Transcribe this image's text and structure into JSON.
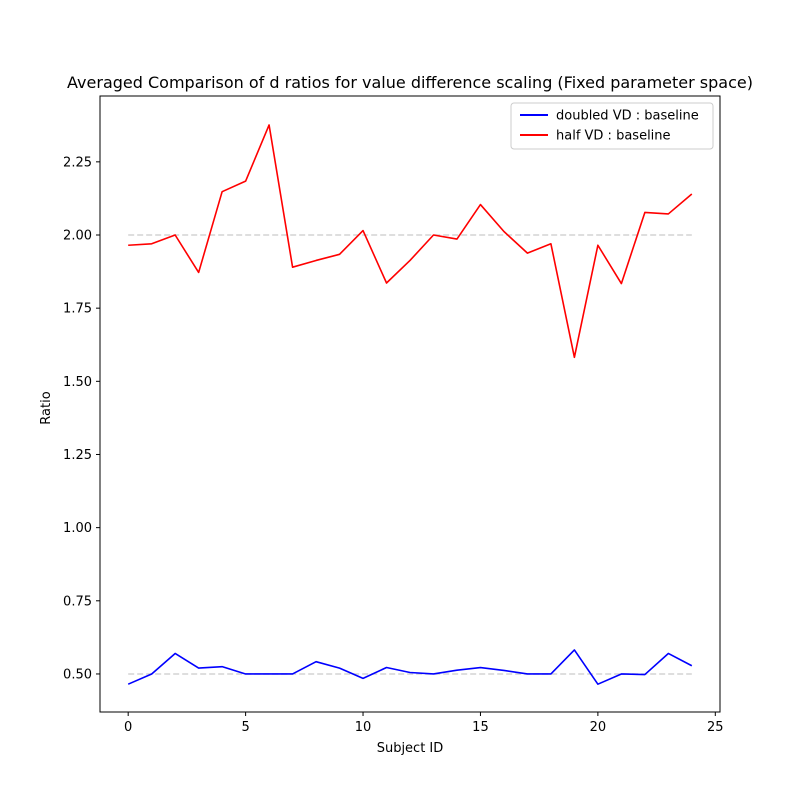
{
  "chart_data": {
    "type": "line",
    "title": "Averaged Comparison of d ratios for value difference scaling (Fixed parameter space)",
    "xlabel": "Subject ID",
    "ylabel": "Ratio",
    "xlim": [
      -1.2,
      25.2
    ],
    "ylim": [
      0.37,
      2.475
    ],
    "xticks": [
      0,
      5,
      10,
      15,
      20,
      25
    ],
    "yticks": [
      0.5,
      0.75,
      1.0,
      1.25,
      1.5,
      1.75,
      2.0,
      2.25
    ],
    "ytick_labels": [
      "0.50",
      "0.75",
      "1.00",
      "1.25",
      "1.50",
      "1.75",
      "2.00",
      "2.25"
    ],
    "x": [
      0,
      1,
      2,
      3,
      4,
      5,
      6,
      7,
      8,
      9,
      10,
      11,
      12,
      13,
      14,
      15,
      16,
      17,
      18,
      19,
      20,
      21,
      22,
      23,
      24
    ],
    "series": [
      {
        "name": "doubled VD : baseline",
        "color": "#0000ff",
        "values": [
          0.465,
          0.5,
          0.57,
          0.52,
          0.525,
          0.5,
          0.5,
          0.5,
          0.542,
          0.52,
          0.485,
          0.522,
          0.505,
          0.5,
          0.513,
          0.522,
          0.512,
          0.5,
          0.5,
          0.582,
          0.465,
          0.5,
          0.498,
          0.57,
          0.528
        ]
      },
      {
        "name": "half VD : baseline",
        "color": "#ff0000",
        "values": [
          1.965,
          1.97,
          2.0,
          1.872,
          2.148,
          2.184,
          2.376,
          1.89,
          1.913,
          1.934,
          2.015,
          1.836,
          1.913,
          2.0,
          1.986,
          2.104,
          2.012,
          1.938,
          1.97,
          1.582,
          1.965,
          1.834,
          2.077,
          2.072,
          2.14
        ]
      }
    ],
    "reference_lines": [
      {
        "y": 0.5,
        "color": "#d3d3d3",
        "style": "dashed",
        "x_range": [
          0,
          24
        ]
      },
      {
        "y": 2.0,
        "color": "#d3d3d3",
        "style": "dashed",
        "x_range": [
          0,
          24
        ]
      }
    ],
    "legend_position": "top-right",
    "grid": false
  }
}
